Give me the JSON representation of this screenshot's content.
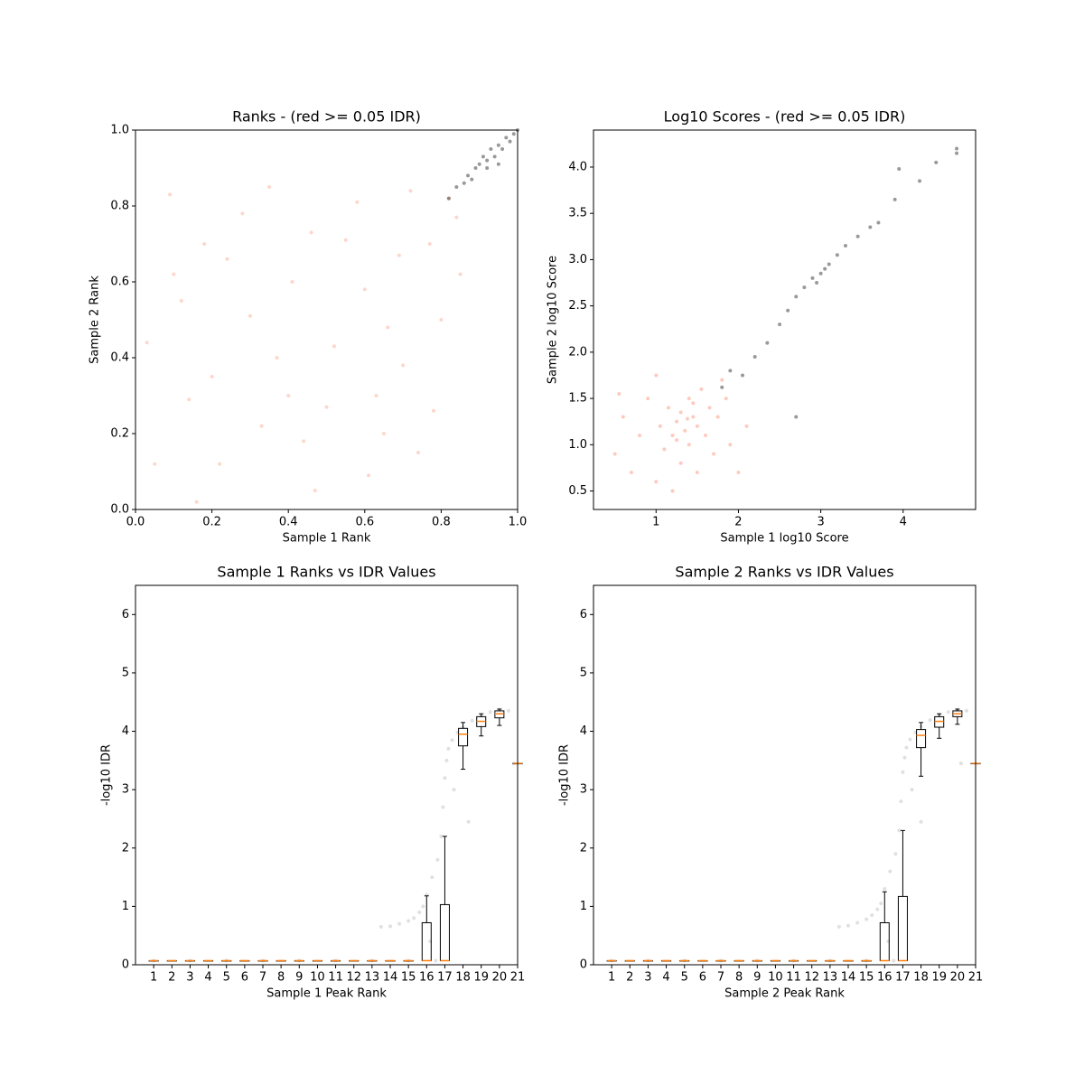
{
  "chart_data": [
    {
      "type": "scatter",
      "title": "Ranks - (red >= 0.05 IDR)",
      "x_label": "Sample 1 Rank",
      "y_label": "Sample 2 Rank",
      "xlim": [
        0,
        1
      ],
      "ylim": [
        0,
        1
      ],
      "xticks": [
        {
          "value": 0,
          "label": "0.0"
        },
        0.2,
        0.4,
        0.6,
        0.8,
        {
          "value": 1,
          "label": "1.0"
        }
      ],
      "yticks": [
        {
          "value": 0,
          "label": "0.0"
        },
        0.2,
        0.4,
        0.6,
        0.8,
        {
          "value": 1,
          "label": "1.0"
        }
      ],
      "series": [
        {
          "color": "#fa8c6e",
          "opacity": 0.35,
          "x": [
            0.05,
            0.12,
            0.2,
            0.28,
            0.33,
            0.41,
            0.47,
            0.52,
            0.58,
            0.63,
            0.69,
            0.74,
            0.8,
            0.84,
            0.09,
            0.16,
            0.24,
            0.37,
            0.44,
            0.55,
            0.61,
            0.66,
            0.72,
            0.78,
            0.03,
            0.14,
            0.3,
            0.5,
            0.7,
            0.85,
            0.22,
            0.35,
            0.46,
            0.6,
            0.77,
            0.82,
            0.18,
            0.4,
            0.65,
            0.1
          ],
          "y": [
            0.12,
            0.55,
            0.35,
            0.78,
            0.22,
            0.6,
            0.05,
            0.43,
            0.81,
            0.3,
            0.67,
            0.15,
            0.5,
            0.77,
            0.83,
            0.02,
            0.66,
            0.4,
            0.18,
            0.71,
            0.09,
            0.48,
            0.84,
            0.26,
            0.44,
            0.29,
            0.51,
            0.27,
            0.38,
            0.62,
            0.12,
            0.85,
            0.73,
            0.58,
            0.7,
            0.82,
            0.7,
            0.3,
            0.2,
            0.62
          ]
        },
        {
          "color": "#000000",
          "opacity": 0.4,
          "x": [
            0.82,
            0.84,
            0.86,
            0.87,
            0.88,
            0.89,
            0.9,
            0.91,
            0.92,
            0.93,
            0.94,
            0.95,
            0.96,
            0.97,
            0.98,
            0.99,
            1.0,
            0.92,
            0.95
          ],
          "y": [
            0.82,
            0.85,
            0.86,
            0.88,
            0.87,
            0.9,
            0.91,
            0.93,
            0.92,
            0.95,
            0.93,
            0.96,
            0.95,
            0.98,
            0.97,
            0.99,
            1.0,
            0.9,
            0.91
          ]
        }
      ]
    },
    {
      "type": "scatter",
      "title": "Log10 Scores - (red >= 0.05 IDR)",
      "x_label": "Sample 1 log10 Score",
      "y_label": "Sample 2 log10 Score",
      "xlim": [
        0.24,
        4.88
      ],
      "ylim": [
        0.3,
        4.4
      ],
      "xticks": [
        1,
        2,
        3,
        4
      ],
      "yticks": [
        0.5,
        {
          "value": 1,
          "label": "1.0"
        },
        1.5,
        {
          "value": 2,
          "label": "2.0"
        },
        2.5,
        {
          "value": 3,
          "label": "3.0"
        },
        3.5,
        {
          "value": 4,
          "label": "4.0"
        }
      ],
      "series": [
        {
          "color": "#fa8c6e",
          "opacity": 0.45,
          "x": [
            0.5,
            0.6,
            0.7,
            0.8,
            0.9,
            1.0,
            1.05,
            1.1,
            1.15,
            1.2,
            1.25,
            1.3,
            1.3,
            1.35,
            1.4,
            1.4,
            1.45,
            1.5,
            1.5,
            1.55,
            1.6,
            1.65,
            1.7,
            1.75,
            1.8,
            1.85,
            1.9,
            1.2,
            0.55,
            1.0,
            1.25,
            1.38,
            1.45,
            2.0,
            2.1
          ],
          "y": [
            0.9,
            1.3,
            0.7,
            1.1,
            1.5,
            0.6,
            1.2,
            0.95,
            1.4,
            1.1,
            1.25,
            0.8,
            1.35,
            1.15,
            1.5,
            1.0,
            1.3,
            0.7,
            1.2,
            1.6,
            1.1,
            1.4,
            0.9,
            1.3,
            1.7,
            1.5,
            1.0,
            0.5,
            1.55,
            1.75,
            1.05,
            1.28,
            1.45,
            0.7,
            1.2
          ]
        },
        {
          "color": "#000000",
          "opacity": 0.4,
          "x": [
            1.8,
            1.9,
            2.05,
            2.2,
            2.35,
            2.5,
            2.6,
            2.7,
            2.8,
            2.9,
            2.95,
            3.0,
            3.05,
            3.1,
            3.2,
            3.3,
            3.45,
            3.6,
            3.7,
            3.9,
            4.2,
            4.4,
            4.65,
            4.65,
            3.95,
            2.7
          ],
          "y": [
            1.62,
            1.8,
            1.75,
            1.95,
            2.1,
            2.3,
            2.45,
            2.6,
            2.7,
            2.8,
            2.75,
            2.85,
            2.9,
            2.95,
            3.05,
            3.15,
            3.25,
            3.35,
            3.4,
            3.65,
            3.85,
            4.05,
            4.2,
            4.15,
            3.98,
            1.3
          ]
        }
      ]
    },
    {
      "type": "box",
      "title": "Sample 1 Ranks vs IDR Values",
      "x_label": "Sample 1 Peak Rank",
      "y_label": "-log10 IDR",
      "xlim": [
        0,
        21
      ],
      "ylim": [
        0,
        6.5
      ],
      "yticks": [
        0,
        1,
        2,
        3,
        4,
        5,
        6
      ],
      "categories": [
        "1",
        "2",
        "3",
        "4",
        "5",
        "6",
        "7",
        "8",
        "9",
        "10",
        "11",
        "12",
        "13",
        "14",
        "15",
        "16",
        "17",
        "18",
        "19",
        "20",
        "21"
      ],
      "boxes": [
        {
          "q1": 0.07,
          "median": 0.07,
          "q3": 0.07,
          "whislo": 0.07,
          "whishi": 0.07
        },
        {
          "q1": 0.07,
          "median": 0.07,
          "q3": 0.07,
          "whislo": 0.07,
          "whishi": 0.07
        },
        {
          "q1": 0.07,
          "median": 0.07,
          "q3": 0.07,
          "whislo": 0.07,
          "whishi": 0.07
        },
        {
          "q1": 0.07,
          "median": 0.07,
          "q3": 0.07,
          "whislo": 0.07,
          "whishi": 0.07
        },
        {
          "q1": 0.07,
          "median": 0.07,
          "q3": 0.07,
          "whislo": 0.07,
          "whishi": 0.07
        },
        {
          "q1": 0.07,
          "median": 0.07,
          "q3": 0.07,
          "whislo": 0.07,
          "whishi": 0.07
        },
        {
          "q1": 0.07,
          "median": 0.07,
          "q3": 0.07,
          "whislo": 0.07,
          "whishi": 0.07
        },
        {
          "q1": 0.07,
          "median": 0.07,
          "q3": 0.07,
          "whislo": 0.07,
          "whishi": 0.07
        },
        {
          "q1": 0.07,
          "median": 0.07,
          "q3": 0.07,
          "whislo": 0.07,
          "whishi": 0.07
        },
        {
          "q1": 0.07,
          "median": 0.07,
          "q3": 0.07,
          "whislo": 0.07,
          "whishi": 0.07
        },
        {
          "q1": 0.07,
          "median": 0.07,
          "q3": 0.07,
          "whislo": 0.07,
          "whishi": 0.07
        },
        {
          "q1": 0.07,
          "median": 0.07,
          "q3": 0.07,
          "whislo": 0.07,
          "whishi": 0.07
        },
        {
          "q1": 0.07,
          "median": 0.07,
          "q3": 0.07,
          "whislo": 0.07,
          "whishi": 0.07
        },
        {
          "q1": 0.07,
          "median": 0.07,
          "q3": 0.07,
          "whislo": 0.07,
          "whishi": 0.07
        },
        {
          "q1": 0.07,
          "median": 0.07,
          "q3": 0.07,
          "whislo": 0.07,
          "whishi": 0.07
        },
        {
          "q1": 0.07,
          "median": 0.07,
          "q3": 0.72,
          "whislo": 0.07,
          "whishi": 1.18
        },
        {
          "q1": 0.07,
          "median": 0.07,
          "q3": 1.03,
          "whislo": 0.07,
          "whishi": 2.2
        },
        {
          "q1": 3.75,
          "median": 3.95,
          "q3": 4.05,
          "whislo": 3.35,
          "whishi": 4.15
        },
        {
          "q1": 4.08,
          "median": 4.17,
          "q3": 4.25,
          "whislo": 3.92,
          "whishi": 4.3
        },
        {
          "q1": 4.23,
          "median": 4.3,
          "q3": 4.35,
          "whislo": 4.1,
          "whishi": 4.38
        },
        {
          "q1": 3.45,
          "median": 3.45,
          "q3": 3.45,
          "whislo": 3.45,
          "whishi": 3.45
        }
      ],
      "points": {
        "color": "#000000",
        "opacity": 0.12,
        "x": [
          1,
          3,
          5,
          7,
          9,
          11,
          13,
          15,
          16.5,
          13.5,
          14,
          14.5,
          15,
          15.3,
          15.6,
          15.8,
          16,
          16.3,
          16.6,
          16.8,
          16.9,
          17,
          17.1,
          17.2,
          17.4,
          17.7,
          18,
          18.5,
          19,
          19.5,
          20,
          20.5,
          20.8,
          18.3,
          17.5,
          16.2
        ],
        "y": [
          0.07,
          0.07,
          0.07,
          0.07,
          0.07,
          0.07,
          0.07,
          0.07,
          0.07,
          0.65,
          0.66,
          0.7,
          0.75,
          0.8,
          0.9,
          1.0,
          1.2,
          1.5,
          1.8,
          2.2,
          2.7,
          3.2,
          3.5,
          3.7,
          3.85,
          3.98,
          4.07,
          4.18,
          4.27,
          4.33,
          4.37,
          4.35,
          3.45,
          2.45,
          3.0,
          0.4
        ]
      }
    },
    {
      "type": "box",
      "title": "Sample 2 Ranks vs IDR Values",
      "x_label": "Sample 2 Peak Rank",
      "y_label": "-log10 IDR",
      "xlim": [
        0,
        21
      ],
      "ylim": [
        0,
        6.5
      ],
      "yticks": [
        0,
        1,
        2,
        3,
        4,
        5,
        6
      ],
      "categories": [
        "1",
        "2",
        "3",
        "4",
        "5",
        "6",
        "7",
        "8",
        "9",
        "10",
        "11",
        "12",
        "13",
        "14",
        "15",
        "16",
        "17",
        "18",
        "19",
        "20",
        "21"
      ],
      "boxes": [
        {
          "q1": 0.07,
          "median": 0.07,
          "q3": 0.07,
          "whislo": 0.07,
          "whishi": 0.07
        },
        {
          "q1": 0.07,
          "median": 0.07,
          "q3": 0.07,
          "whislo": 0.07,
          "whishi": 0.07
        },
        {
          "q1": 0.07,
          "median": 0.07,
          "q3": 0.07,
          "whislo": 0.07,
          "whishi": 0.07
        },
        {
          "q1": 0.07,
          "median": 0.07,
          "q3": 0.07,
          "whislo": 0.07,
          "whishi": 0.07
        },
        {
          "q1": 0.07,
          "median": 0.07,
          "q3": 0.07,
          "whislo": 0.07,
          "whishi": 0.07
        },
        {
          "q1": 0.07,
          "median": 0.07,
          "q3": 0.07,
          "whislo": 0.07,
          "whishi": 0.07
        },
        {
          "q1": 0.07,
          "median": 0.07,
          "q3": 0.07,
          "whislo": 0.07,
          "whishi": 0.07
        },
        {
          "q1": 0.07,
          "median": 0.07,
          "q3": 0.07,
          "whislo": 0.07,
          "whishi": 0.07
        },
        {
          "q1": 0.07,
          "median": 0.07,
          "q3": 0.07,
          "whislo": 0.07,
          "whishi": 0.07
        },
        {
          "q1": 0.07,
          "median": 0.07,
          "q3": 0.07,
          "whislo": 0.07,
          "whishi": 0.07
        },
        {
          "q1": 0.07,
          "median": 0.07,
          "q3": 0.07,
          "whislo": 0.07,
          "whishi": 0.07
        },
        {
          "q1": 0.07,
          "median": 0.07,
          "q3": 0.07,
          "whislo": 0.07,
          "whishi": 0.07
        },
        {
          "q1": 0.07,
          "median": 0.07,
          "q3": 0.07,
          "whislo": 0.07,
          "whishi": 0.07
        },
        {
          "q1": 0.07,
          "median": 0.07,
          "q3": 0.07,
          "whislo": 0.07,
          "whishi": 0.07
        },
        {
          "q1": 0.07,
          "median": 0.07,
          "q3": 0.07,
          "whislo": 0.07,
          "whishi": 0.07
        },
        {
          "q1": 0.07,
          "median": 0.07,
          "q3": 0.72,
          "whislo": 0.07,
          "whishi": 1.25
        },
        {
          "q1": 0.07,
          "median": 0.07,
          "q3": 1.17,
          "whislo": 0.07,
          "whishi": 2.3
        },
        {
          "q1": 3.72,
          "median": 3.93,
          "q3": 4.03,
          "whislo": 3.23,
          "whishi": 4.15
        },
        {
          "q1": 4.07,
          "median": 4.17,
          "q3": 4.25,
          "whislo": 3.88,
          "whishi": 4.3
        },
        {
          "q1": 4.25,
          "median": 4.3,
          "q3": 4.35,
          "whislo": 4.12,
          "whishi": 4.38
        },
        {
          "q1": 3.45,
          "median": 3.45,
          "q3": 3.45,
          "whislo": 3.45,
          "whishi": 3.45
        }
      ],
      "points": {
        "color": "#000000",
        "opacity": 0.12,
        "x": [
          1,
          3,
          5,
          7,
          9,
          11,
          13,
          15,
          16.5,
          13.5,
          14,
          14.5,
          15,
          15.3,
          15.6,
          15.8,
          16,
          16.3,
          16.6,
          16.8,
          16.9,
          17,
          17.1,
          17.2,
          17.4,
          17.7,
          18,
          18.5,
          19,
          19.5,
          20,
          20.5,
          20.2,
          18,
          17.5,
          16.2
        ],
        "y": [
          0.07,
          0.07,
          0.07,
          0.07,
          0.07,
          0.07,
          0.07,
          0.07,
          0.07,
          0.65,
          0.67,
          0.72,
          0.78,
          0.85,
          0.95,
          1.05,
          1.3,
          1.6,
          1.9,
          2.3,
          2.8,
          3.3,
          3.55,
          3.72,
          3.86,
          3.98,
          4.08,
          4.19,
          4.28,
          4.33,
          4.37,
          4.35,
          3.45,
          2.45,
          3.0,
          0.4
        ]
      }
    }
  ]
}
